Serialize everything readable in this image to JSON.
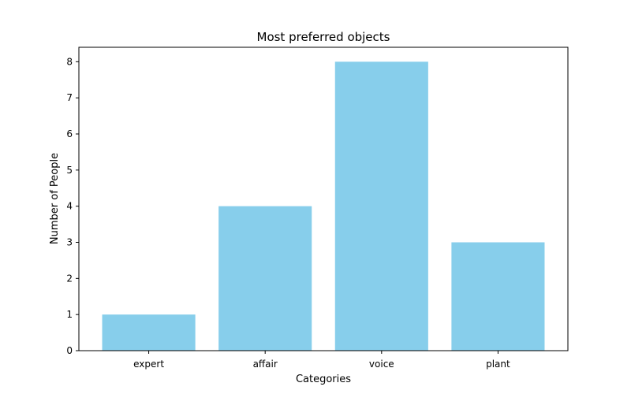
{
  "chart_data": {
    "type": "bar",
    "title": "Most preferred objects",
    "xlabel": "Categories",
    "ylabel": "Number of People",
    "categories": [
      "expert",
      "affair",
      "voice",
      "plant"
    ],
    "values": [
      1,
      4,
      8,
      3
    ],
    "ylim": [
      0,
      8.4
    ],
    "yticks": [
      0,
      1,
      2,
      3,
      4,
      5,
      6,
      7,
      8
    ],
    "grid": false,
    "colors": {
      "bar": "#87ceeb",
      "axis": "#000000"
    }
  }
}
